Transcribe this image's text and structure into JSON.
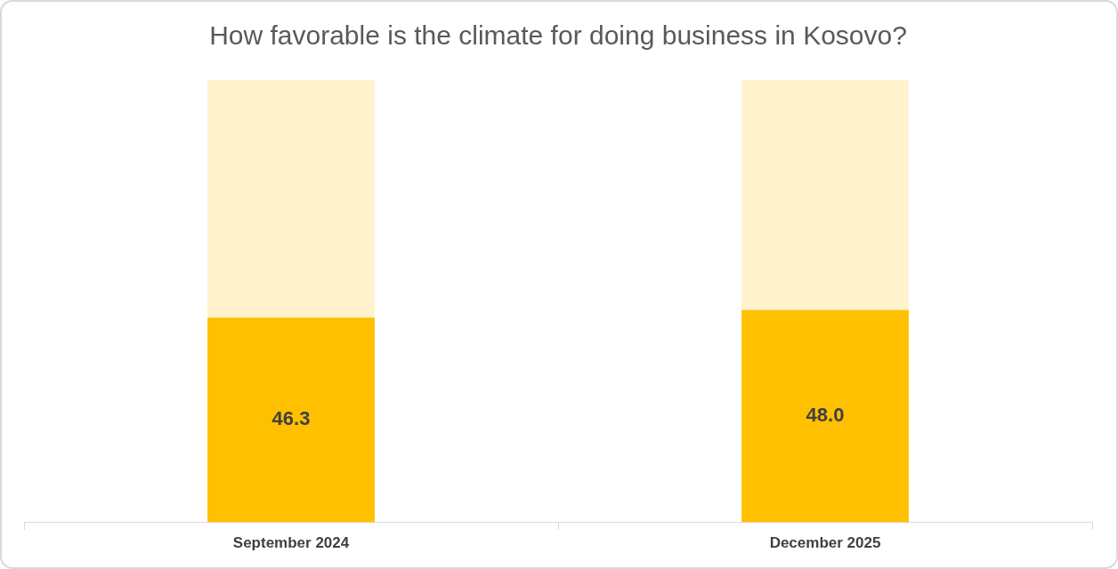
{
  "chart_data": {
    "type": "bar",
    "title": "How favorable is the climate for doing business in Kosovo?",
    "categories": [
      "September 2024",
      "December 2025"
    ],
    "stacked": true,
    "series": [
      {
        "color": "#ffc000",
        "values": [
          46.3,
          48.0
        ],
        "value_labels": [
          "46.3",
          "48.0"
        ]
      },
      {
        "color": "#fff2cc",
        "values": [
          53.7,
          52.0
        ]
      }
    ],
    "ylim": [
      0,
      100
    ],
    "tick_labels": "x",
    "grid": false
  }
}
